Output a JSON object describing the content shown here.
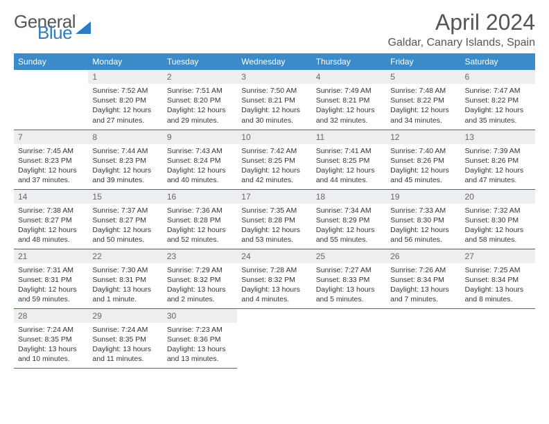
{
  "logo": {
    "part1": "General",
    "part2": "Blue"
  },
  "title": "April 2024",
  "location": "Galdar, Canary Islands, Spain",
  "colors": {
    "header_bg": "#3b8bc9",
    "header_text": "#ffffff",
    "daynum_bg": "#eeeeee",
    "border": "#3b6a95",
    "logo_blue": "#2d7bc0",
    "text": "#333333"
  },
  "typography": {
    "title_fontsize": 32,
    "location_fontsize": 16,
    "header_fontsize": 12,
    "body_fontsize": 10.5
  },
  "layout": {
    "columns": 7,
    "rows": 5,
    "first_weekday": "Sunday"
  },
  "weekdays": [
    "Sunday",
    "Monday",
    "Tuesday",
    "Wednesday",
    "Thursday",
    "Friday",
    "Saturday"
  ],
  "weeks": [
    [
      null,
      {
        "d": "1",
        "sr": "7:52 AM",
        "ss": "8:20 PM",
        "dl": "Daylight: 12 hours and 27 minutes."
      },
      {
        "d": "2",
        "sr": "7:51 AM",
        "ss": "8:20 PM",
        "dl": "Daylight: 12 hours and 29 minutes."
      },
      {
        "d": "3",
        "sr": "7:50 AM",
        "ss": "8:21 PM",
        "dl": "Daylight: 12 hours and 30 minutes."
      },
      {
        "d": "4",
        "sr": "7:49 AM",
        "ss": "8:21 PM",
        "dl": "Daylight: 12 hours and 32 minutes."
      },
      {
        "d": "5",
        "sr": "7:48 AM",
        "ss": "8:22 PM",
        "dl": "Daylight: 12 hours and 34 minutes."
      },
      {
        "d": "6",
        "sr": "7:47 AM",
        "ss": "8:22 PM",
        "dl": "Daylight: 12 hours and 35 minutes."
      }
    ],
    [
      {
        "d": "7",
        "sr": "7:45 AM",
        "ss": "8:23 PM",
        "dl": "Daylight: 12 hours and 37 minutes."
      },
      {
        "d": "8",
        "sr": "7:44 AM",
        "ss": "8:23 PM",
        "dl": "Daylight: 12 hours and 39 minutes."
      },
      {
        "d": "9",
        "sr": "7:43 AM",
        "ss": "8:24 PM",
        "dl": "Daylight: 12 hours and 40 minutes."
      },
      {
        "d": "10",
        "sr": "7:42 AM",
        "ss": "8:25 PM",
        "dl": "Daylight: 12 hours and 42 minutes."
      },
      {
        "d": "11",
        "sr": "7:41 AM",
        "ss": "8:25 PM",
        "dl": "Daylight: 12 hours and 44 minutes."
      },
      {
        "d": "12",
        "sr": "7:40 AM",
        "ss": "8:26 PM",
        "dl": "Daylight: 12 hours and 45 minutes."
      },
      {
        "d": "13",
        "sr": "7:39 AM",
        "ss": "8:26 PM",
        "dl": "Daylight: 12 hours and 47 minutes."
      }
    ],
    [
      {
        "d": "14",
        "sr": "7:38 AM",
        "ss": "8:27 PM",
        "dl": "Daylight: 12 hours and 48 minutes."
      },
      {
        "d": "15",
        "sr": "7:37 AM",
        "ss": "8:27 PM",
        "dl": "Daylight: 12 hours and 50 minutes."
      },
      {
        "d": "16",
        "sr": "7:36 AM",
        "ss": "8:28 PM",
        "dl": "Daylight: 12 hours and 52 minutes."
      },
      {
        "d": "17",
        "sr": "7:35 AM",
        "ss": "8:28 PM",
        "dl": "Daylight: 12 hours and 53 minutes."
      },
      {
        "d": "18",
        "sr": "7:34 AM",
        "ss": "8:29 PM",
        "dl": "Daylight: 12 hours and 55 minutes."
      },
      {
        "d": "19",
        "sr": "7:33 AM",
        "ss": "8:30 PM",
        "dl": "Daylight: 12 hours and 56 minutes."
      },
      {
        "d": "20",
        "sr": "7:32 AM",
        "ss": "8:30 PM",
        "dl": "Daylight: 12 hours and 58 minutes."
      }
    ],
    [
      {
        "d": "21",
        "sr": "7:31 AM",
        "ss": "8:31 PM",
        "dl": "Daylight: 12 hours and 59 minutes."
      },
      {
        "d": "22",
        "sr": "7:30 AM",
        "ss": "8:31 PM",
        "dl": "Daylight: 13 hours and 1 minute."
      },
      {
        "d": "23",
        "sr": "7:29 AM",
        "ss": "8:32 PM",
        "dl": "Daylight: 13 hours and 2 minutes."
      },
      {
        "d": "24",
        "sr": "7:28 AM",
        "ss": "8:32 PM",
        "dl": "Daylight: 13 hours and 4 minutes."
      },
      {
        "d": "25",
        "sr": "7:27 AM",
        "ss": "8:33 PM",
        "dl": "Daylight: 13 hours and 5 minutes."
      },
      {
        "d": "26",
        "sr": "7:26 AM",
        "ss": "8:34 PM",
        "dl": "Daylight: 13 hours and 7 minutes."
      },
      {
        "d": "27",
        "sr": "7:25 AM",
        "ss": "8:34 PM",
        "dl": "Daylight: 13 hours and 8 minutes."
      }
    ],
    [
      {
        "d": "28",
        "sr": "7:24 AM",
        "ss": "8:35 PM",
        "dl": "Daylight: 13 hours and 10 minutes."
      },
      {
        "d": "29",
        "sr": "7:24 AM",
        "ss": "8:35 PM",
        "dl": "Daylight: 13 hours and 11 minutes."
      },
      {
        "d": "30",
        "sr": "7:23 AM",
        "ss": "8:36 PM",
        "dl": "Daylight: 13 hours and 13 minutes."
      },
      null,
      null,
      null,
      null
    ]
  ],
  "labels": {
    "sunrise_prefix": "Sunrise: ",
    "sunset_prefix": "Sunset: "
  }
}
